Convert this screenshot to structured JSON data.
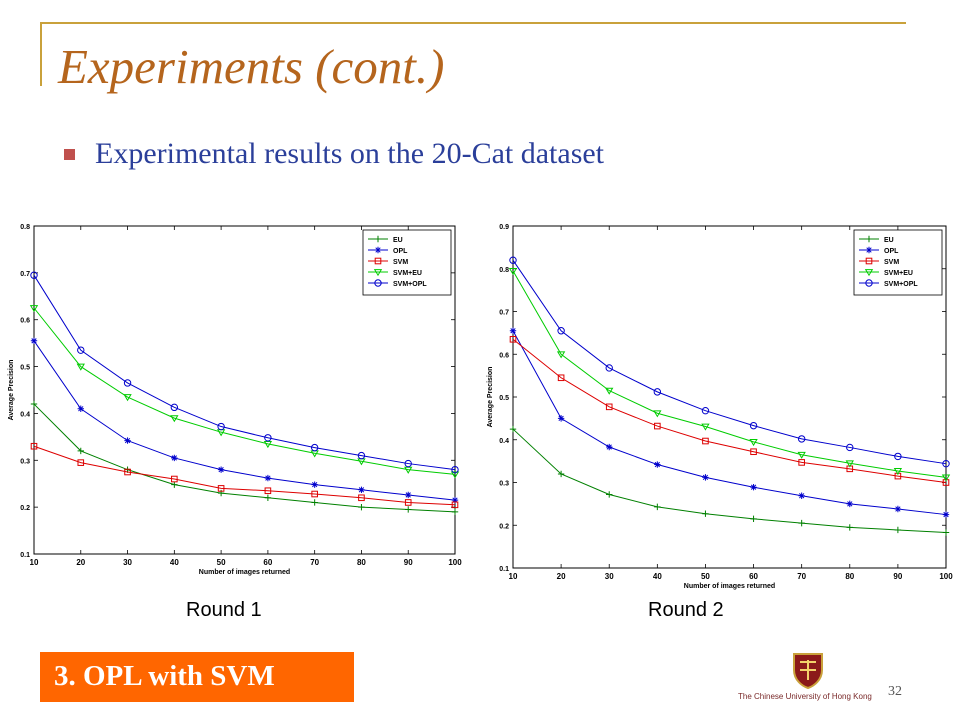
{
  "slide": {
    "title": "Experiments (cont.)",
    "bullet": "Experimental results on the 20-Cat dataset",
    "footer": "3. OPL with SVM",
    "page_number": "32",
    "logo_caption": "The Chinese University of Hong Kong"
  },
  "colors": {
    "title": "#b5651d",
    "bullet_text": "#2b3f9a",
    "bullet_mark": "#c0504d",
    "frame": "#c9a13b",
    "footer_bg": "#ff6600",
    "footer_text": "#ffffff"
  },
  "chart_data": [
    {
      "type": "line",
      "caption": "Round 1",
      "xlabel": "Number of images returned",
      "ylabel": "Average Precision",
      "x": [
        10,
        20,
        30,
        40,
        50,
        60,
        70,
        80,
        90,
        100
      ],
      "xlim": [
        10,
        100
      ],
      "ylim": [
        0.1,
        0.8
      ],
      "xticks": [
        10,
        20,
        30,
        40,
        50,
        60,
        70,
        80,
        90,
        100
      ],
      "yticks": [
        0.1,
        0.2,
        0.3,
        0.4,
        0.5,
        0.6,
        0.7,
        0.8
      ],
      "grid": false,
      "legend_position": "top-right",
      "series": [
        {
          "name": "EU",
          "color": "#008000",
          "marker": "plus",
          "values": [
            0.42,
            0.32,
            0.28,
            0.248,
            0.23,
            0.22,
            0.21,
            0.2,
            0.195,
            0.19
          ]
        },
        {
          "name": "OPL",
          "color": "#0000cc",
          "marker": "star",
          "values": [
            0.555,
            0.41,
            0.342,
            0.305,
            0.28,
            0.262,
            0.248,
            0.237,
            0.226,
            0.215
          ]
        },
        {
          "name": "SVM",
          "color": "#dd0000",
          "marker": "square",
          "values": [
            0.33,
            0.295,
            0.275,
            0.26,
            0.24,
            0.235,
            0.228,
            0.22,
            0.21,
            0.205
          ]
        },
        {
          "name": "SVM+EU",
          "color": "#00cc00",
          "marker": "triangle",
          "values": [
            0.625,
            0.5,
            0.435,
            0.39,
            0.36,
            0.335,
            0.315,
            0.298,
            0.28,
            0.27
          ]
        },
        {
          "name": "SVM+OPL",
          "color": "#0000cc",
          "marker": "circle",
          "values": [
            0.695,
            0.535,
            0.465,
            0.413,
            0.372,
            0.348,
            0.327,
            0.31,
            0.293,
            0.28
          ]
        }
      ]
    },
    {
      "type": "line",
      "caption": "Round 2",
      "xlabel": "Number of images returned",
      "ylabel": "Average Precision",
      "x": [
        10,
        20,
        30,
        40,
        50,
        60,
        70,
        80,
        90,
        100
      ],
      "xlim": [
        10,
        100
      ],
      "ylim": [
        0.1,
        0.9
      ],
      "xticks": [
        10,
        20,
        30,
        40,
        50,
        60,
        70,
        80,
        90,
        100
      ],
      "yticks": [
        0.1,
        0.2,
        0.3,
        0.4,
        0.5,
        0.6,
        0.7,
        0.8,
        0.9
      ],
      "grid": false,
      "legend_position": "top-right",
      "series": [
        {
          "name": "EU",
          "color": "#008000",
          "marker": "plus",
          "values": [
            0.425,
            0.32,
            0.272,
            0.243,
            0.227,
            0.215,
            0.205,
            0.195,
            0.189,
            0.183
          ]
        },
        {
          "name": "OPL",
          "color": "#0000cc",
          "marker": "star",
          "values": [
            0.655,
            0.45,
            0.383,
            0.342,
            0.312,
            0.289,
            0.269,
            0.25,
            0.238,
            0.225
          ]
        },
        {
          "name": "SVM",
          "color": "#dd0000",
          "marker": "square",
          "values": [
            0.635,
            0.545,
            0.477,
            0.432,
            0.397,
            0.372,
            0.347,
            0.332,
            0.315,
            0.3
          ]
        },
        {
          "name": "SVM+EU",
          "color": "#00cc00",
          "marker": "triangle",
          "values": [
            0.795,
            0.6,
            0.515,
            0.462,
            0.431,
            0.395,
            0.365,
            0.345,
            0.327,
            0.312
          ]
        },
        {
          "name": "SVM+OPL",
          "color": "#0000cc",
          "marker": "circle",
          "values": [
            0.82,
            0.655,
            0.568,
            0.512,
            0.468,
            0.433,
            0.402,
            0.382,
            0.361,
            0.344
          ]
        }
      ]
    }
  ]
}
